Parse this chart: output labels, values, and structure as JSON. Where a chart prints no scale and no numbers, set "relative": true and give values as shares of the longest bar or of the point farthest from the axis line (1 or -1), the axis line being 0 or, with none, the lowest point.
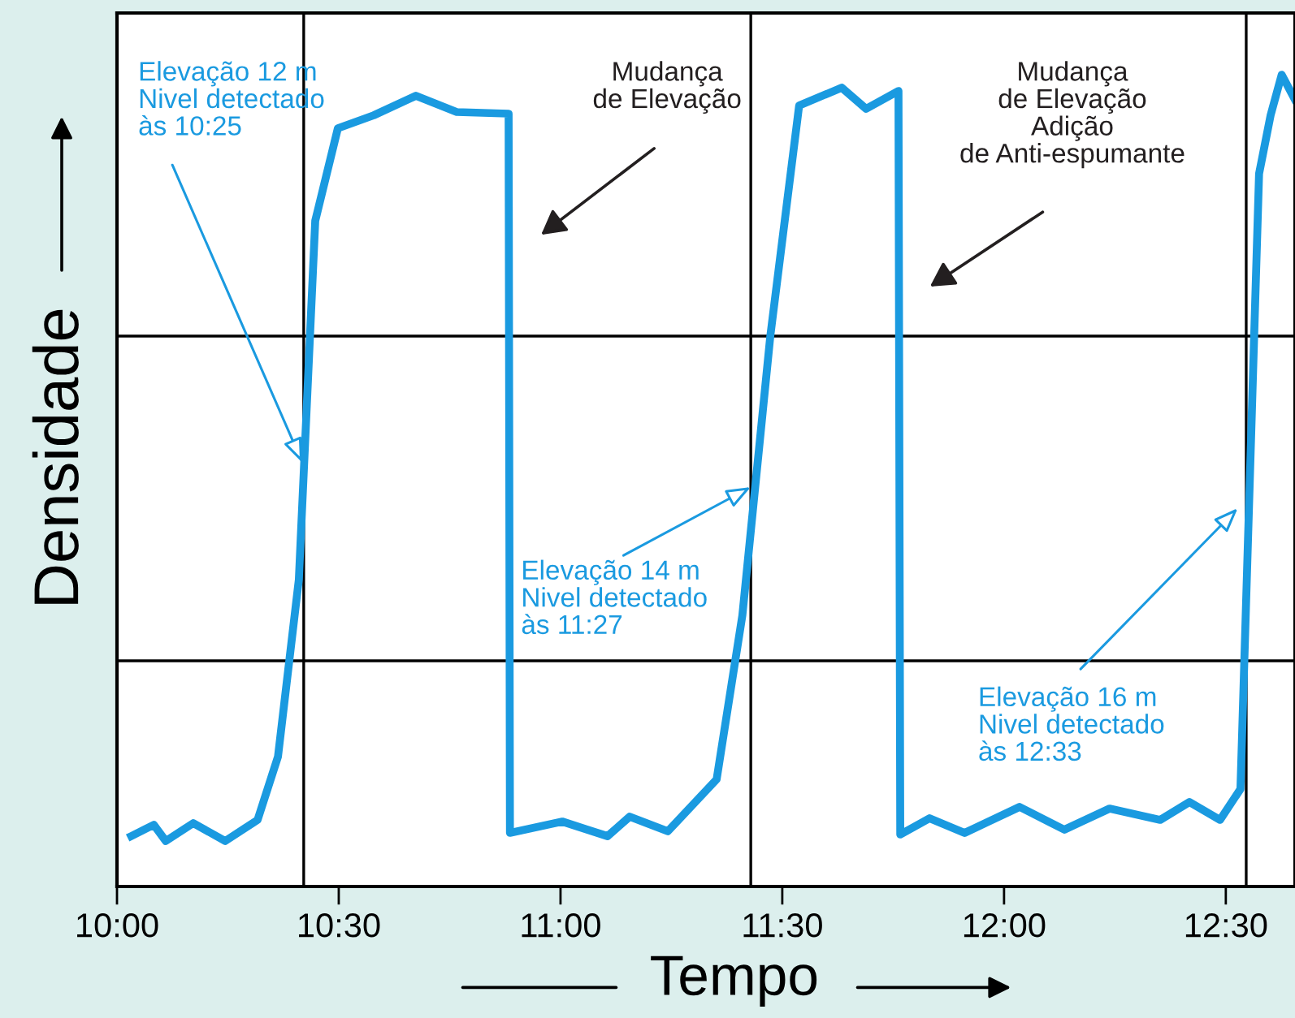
{
  "chart_data": {
    "type": "line",
    "relative": true,
    "xlabel": "Tempo",
    "ylabel": "Densidade",
    "x": [
      10.032,
      10.083,
      10.11,
      10.172,
      10.244,
      10.317,
      10.363,
      10.41,
      10.447,
      10.498,
      10.579,
      10.674,
      10.766,
      10.883,
      10.886,
      11.004,
      11.106,
      11.156,
      11.242,
      11.352,
      11.41,
      11.473,
      11.538,
      11.634,
      11.689,
      11.762,
      11.766,
      11.832,
      11.911,
      12.035,
      12.136,
      12.238,
      12.352,
      12.418,
      12.487,
      12.533,
      12.575,
      12.601,
      12.626,
      12.655
    ],
    "series": [
      {
        "color": "#1a9ae0",
        "values": [
          0.062,
          0.076,
          0.056,
          0.078,
          0.056,
          0.082,
          0.16,
          0.378,
          0.82,
          0.934,
          0.95,
          0.974,
          0.954,
          0.952,
          0.066,
          0.08,
          0.062,
          0.086,
          0.068,
          0.132,
          0.334,
          0.678,
          0.962,
          0.984,
          0.958,
          0.98,
          0.064,
          0.084,
          0.066,
          0.098,
          0.07,
          0.096,
          0.082,
          0.104,
          0.082,
          0.12,
          0.878,
          0.95,
          1,
          0.97
        ]
      }
    ],
    "xlim": [
      10,
      12.656
    ],
    "xticks": [
      {
        "value": 10,
        "label": "10:00"
      },
      {
        "value": 10.5,
        "label": "10:30"
      },
      {
        "value": 11,
        "label": "11:00"
      },
      {
        "value": 11.5,
        "label": "11:30"
      },
      {
        "value": 12,
        "label": "12:00"
      },
      {
        "value": 12.5,
        "label": "12:30"
      }
    ],
    "ref_lines": [
      {
        "axis": "x",
        "value": 10.421
      },
      {
        "axis": "x",
        "value": 11.429
      },
      {
        "axis": "x",
        "value": 12.546
      },
      {
        "axis": "y",
        "value": 0.678
      },
      {
        "axis": "y",
        "value": 0.278
      }
    ],
    "annotations": [
      {
        "text": "Elevação 12 m\nNivel detectado\nàs 10:25",
        "x": 10.418,
        "y": 0.522
      },
      "Mudança\nde Elevação",
      {
        "text": "Elevação 14 m\nNivel detectado\nàs 11:27",
        "x": 11.429,
        "y": 0.492
      },
      "Mudança\nde Elevação\nAdição\nde Anti-espumante",
      {
        "text": "Elevação 16 m\nNivel detectado\nàs 12:33",
        "x": 12.527,
        "y": 0.466
      }
    ]
  }
}
